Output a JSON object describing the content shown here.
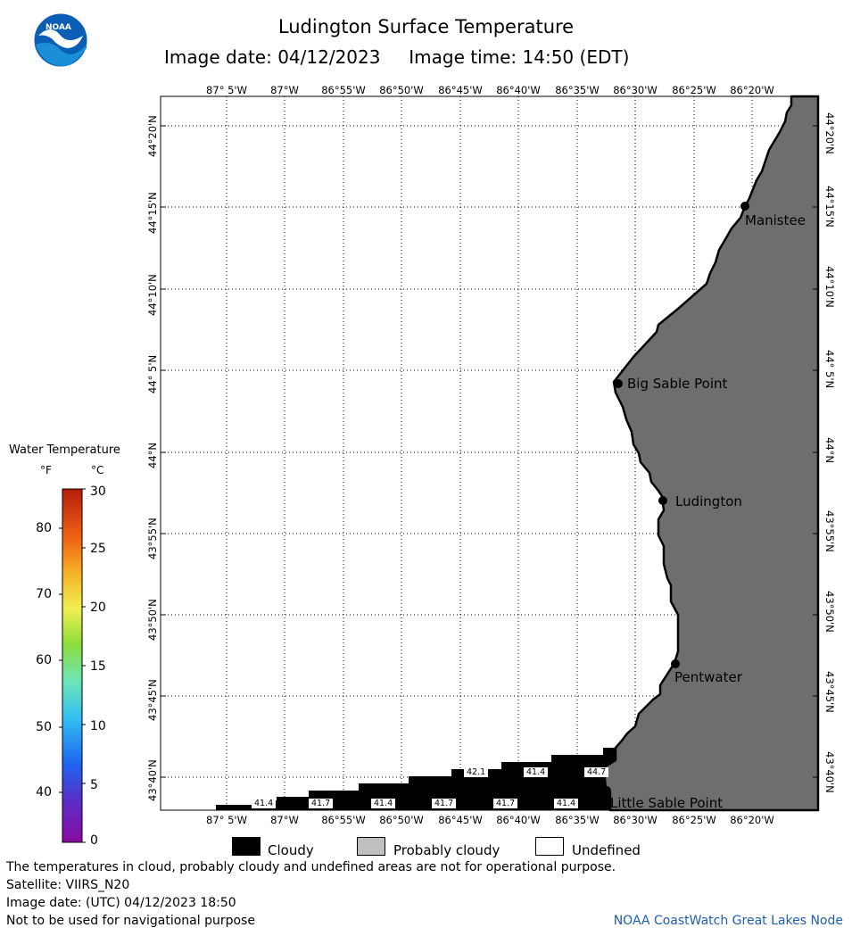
{
  "header": {
    "title": "Ludington Surface Temperature",
    "subtitle": "Image date: 04/12/2023     Image time: 14:50 (EDT)",
    "logo_text": "NOAA"
  },
  "map": {
    "lon_labels": [
      "87° 5'W",
      "87°W",
      "86°55'W",
      "86°50'W",
      "86°45'W",
      "86°40'W",
      "86°35'W",
      "86°30'W",
      "86°25'W",
      "86°20'W"
    ],
    "lat_labels": [
      "44°20'N",
      "44°15'N",
      "44°10'N",
      "44° 5'N",
      "44°N",
      "43°55'N",
      "43°50'N",
      "43°45'N",
      "43°40'N"
    ],
    "places": [
      "Manistee",
      "Big Sable Point",
      "Ludington",
      "Pentwater",
      "Little Sable Point"
    ],
    "temperature_labels": [
      "42.1",
      "41.4",
      "44.7",
      "41.4",
      "41.7",
      "41.4",
      "41.7",
      "41.7",
      "41.4"
    ]
  },
  "color_scale": {
    "title": "Water Temperature",
    "unit_f": "°F",
    "unit_c": "°C",
    "f_ticks": [
      "80",
      "70",
      "60",
      "50",
      "40"
    ],
    "c_ticks": [
      "30",
      "25",
      "20",
      "15",
      "10",
      "5",
      "0"
    ]
  },
  "legend": {
    "cloudy": "Cloudy",
    "probably_cloudy": "Probably cloudy",
    "undefined": "Undefined"
  },
  "notes": {
    "disclaimer": "The temperatures in cloud, probably cloudy and undefined areas are not for operational purpose.",
    "satellite": "Satellite: VIIRS_N20",
    "utc_date": "Image date: (UTC) 04/12/2023  18:50",
    "navigation": "Not to be used for navigational purpose",
    "credit": "NOAA CoastWatch Great Lakes Node"
  },
  "colors": {
    "land": "#6e6e6e",
    "cloudy": "#000000",
    "probably_cloudy": "#bfbfbf",
    "undefined": "#ffffff",
    "credit_text": "#1f5fb0"
  }
}
